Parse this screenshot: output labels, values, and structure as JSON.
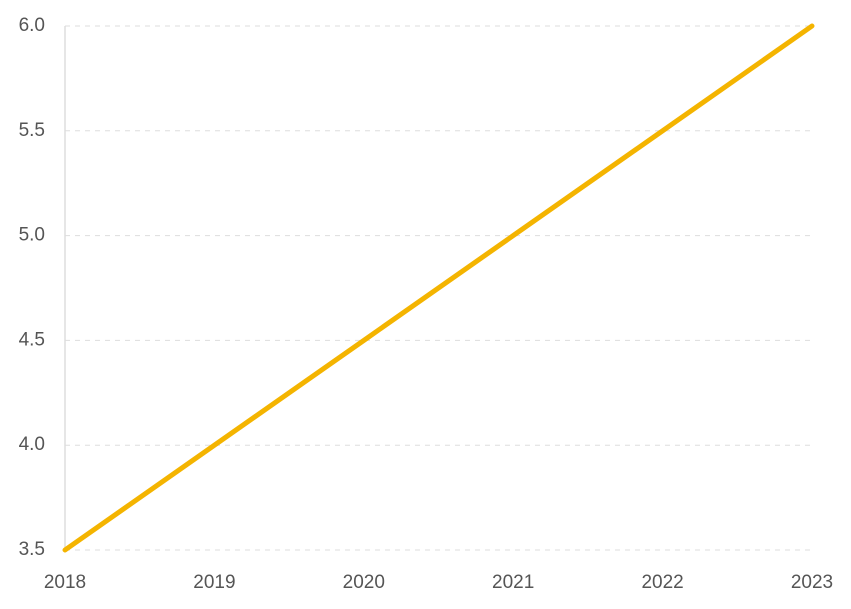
{
  "chart_data": {
    "type": "line",
    "categories": [
      "2018",
      "2019",
      "2020",
      "2021",
      "2022",
      "2023"
    ],
    "values": [
      3.5,
      4.0,
      4.5,
      5.0,
      5.5,
      6.0
    ],
    "color": "#f4b400",
    "ylim": [
      3.5,
      6.0
    ],
    "yticks": [
      3.5,
      {
        "value": 4,
        "label": "4.0"
      },
      4.5,
      {
        "value": 5,
        "label": "5.0"
      },
      5.5,
      {
        "value": 6,
        "label": "6.0"
      }
    ],
    "grid": true
  }
}
